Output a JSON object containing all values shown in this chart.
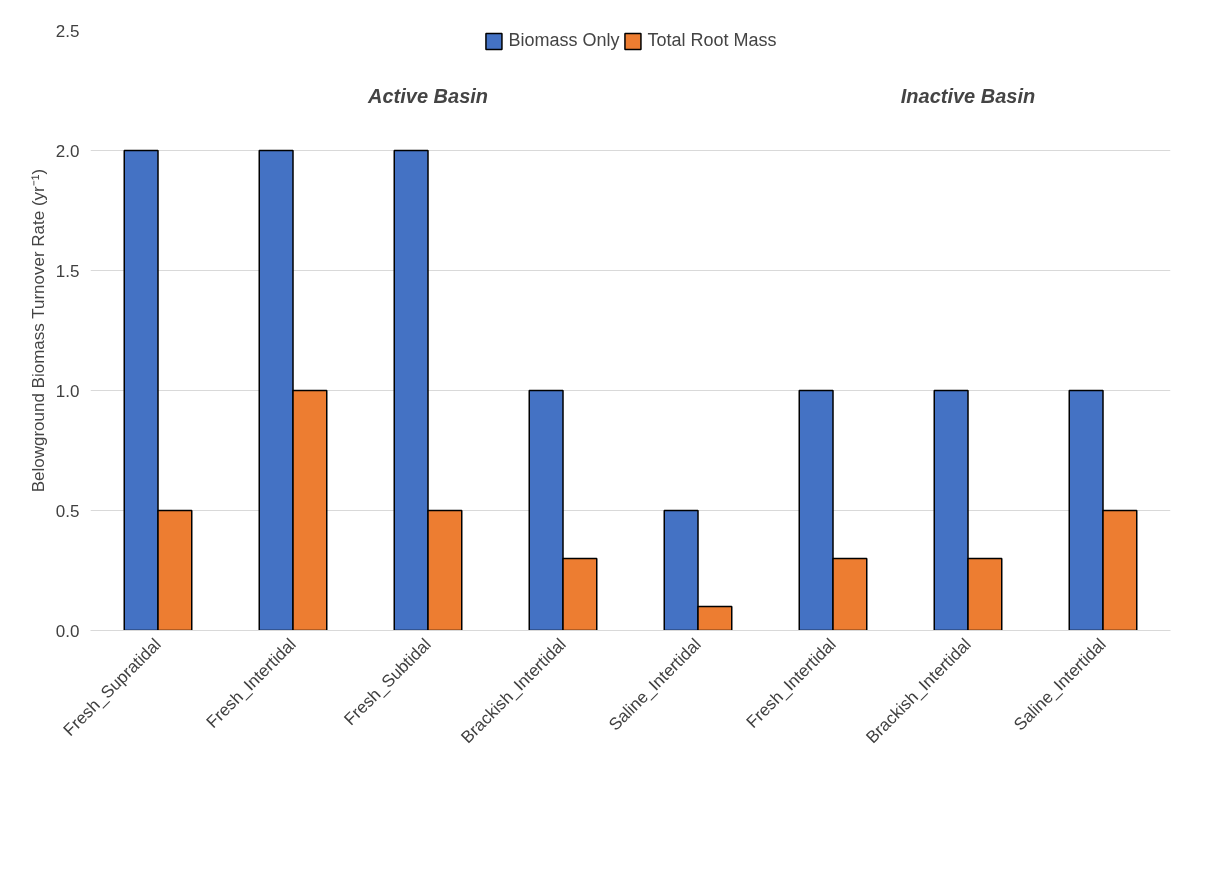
{
  "chart_data": {
    "type": "bar",
    "ylabel": "Belowground Biomass Turnover Rate (yr⁻¹)",
    "categories": [
      "Fresh_Supratidal",
      "Fresh_Intertidal",
      "Fresh_Subtidal",
      "Brackish_Intertidal",
      "Saline_Intertidal",
      "Fresh_Intertidal",
      "Brackish_Intertidal",
      "Saline_Intertidal"
    ],
    "series": [
      {
        "name": "Biomass Only",
        "color": "#4472c4",
        "values": [
          2.0,
          2.0,
          2.0,
          1.0,
          0.5,
          1.0,
          1.0,
          1.0
        ]
      },
      {
        "name": "Total Root Mass",
        "color": "#ed7d31",
        "values": [
          0.5,
          1.0,
          0.5,
          0.3,
          0.1,
          0.3,
          0.3,
          0.5
        ]
      }
    ],
    "ylim": [
      0,
      2.5
    ],
    "yticks": [
      {
        "value": 0,
        "label": "0.0"
      },
      {
        "value": 0.5,
        "label": "0.5"
      },
      {
        "value": 1,
        "label": "1.0"
      },
      {
        "value": 1.5,
        "label": "1.5"
      },
      {
        "value": 2,
        "label": "2.0"
      },
      {
        "value": 2.5,
        "label": "2.5"
      }
    ],
    "annotations": [
      "Active Basin",
      "Inactive Basin"
    ],
    "grid": "y",
    "legend": "top"
  }
}
